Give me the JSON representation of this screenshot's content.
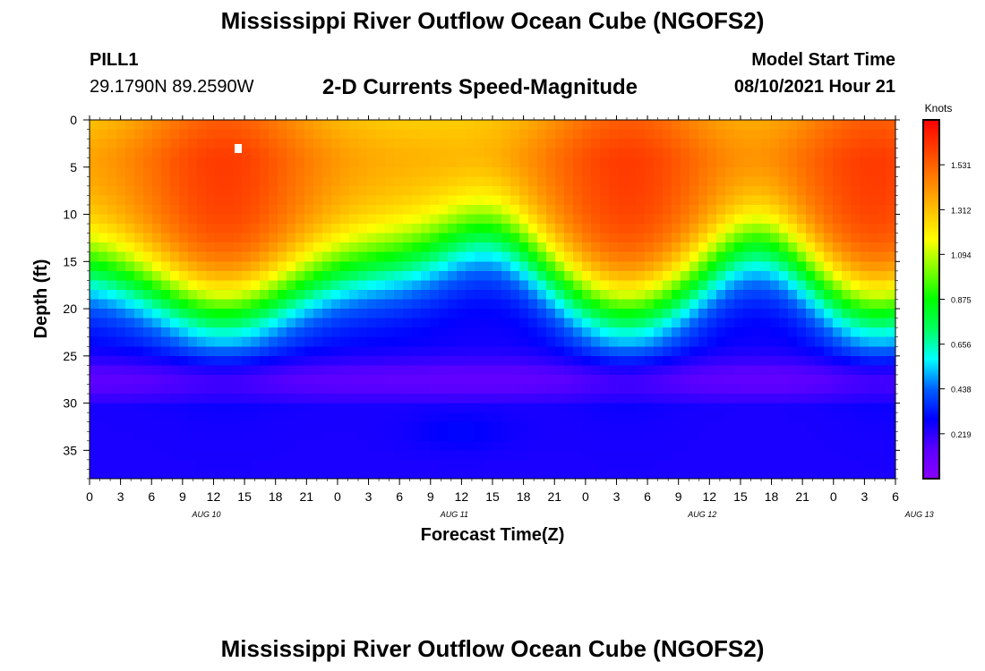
{
  "page": {
    "top_title": "Mississippi River Outflow Ocean Cube (NGOFS2)",
    "bottom_title": "Mississippi River Outflow Ocean Cube (NGOFS2)",
    "station_name": "PILL1",
    "station_coords": "29.1790N  89.2590W",
    "chart_title": "2-D Currents Speed-Magnitude",
    "model_start_label": "Model Start Time",
    "model_start_value": "08/10/2021 Hour 21"
  },
  "chart_data": {
    "type": "heatmap",
    "title": "2-D Currents Speed-Magnitude",
    "xlabel": "Forecast Time(Z)",
    "ylabel": "Depth (ft)",
    "x_ticks": [
      "0",
      "3",
      "6",
      "9",
      "12",
      "15",
      "18",
      "21",
      "0",
      "3",
      "6",
      "9",
      "12",
      "15",
      "18",
      "21",
      "0",
      "3",
      "6",
      "9",
      "12",
      "15",
      "18",
      "21",
      "0",
      "3",
      "6"
    ],
    "date_labels": [
      {
        "label": "AUG 10",
        "hour": 12
      },
      {
        "label": "AUG 11",
        "hour": 36
      },
      {
        "label": "AUG 12",
        "hour": 60
      },
      {
        "label": "AUG 13",
        "hour": 81
      }
    ],
    "x_range_hours": [
      0,
      78
    ],
    "y_ticks": [
      0,
      5,
      10,
      15,
      20,
      25,
      30,
      35
    ],
    "y_range": [
      0,
      38
    ],
    "y_inverted": true,
    "colorbar": {
      "label": "Knots",
      "ticks": [
        "1.531",
        "1.312",
        "1.094",
        "0.875",
        "0.656",
        "0.438",
        "0.219"
      ],
      "range": [
        0,
        1.75
      ],
      "colors": [
        "#8a00ff",
        "#5a00ff",
        "#0000ff",
        "#0060ff",
        "#00ffff",
        "#00ff60",
        "#00ff00",
        "#80ff00",
        "#ffff00",
        "#ffc000",
        "#ff8000",
        "#ff4000",
        "#ff0000"
      ]
    },
    "maxima_hours": [
      13,
      52,
      76
    ],
    "troughs_hours": [
      39,
      65
    ]
  }
}
